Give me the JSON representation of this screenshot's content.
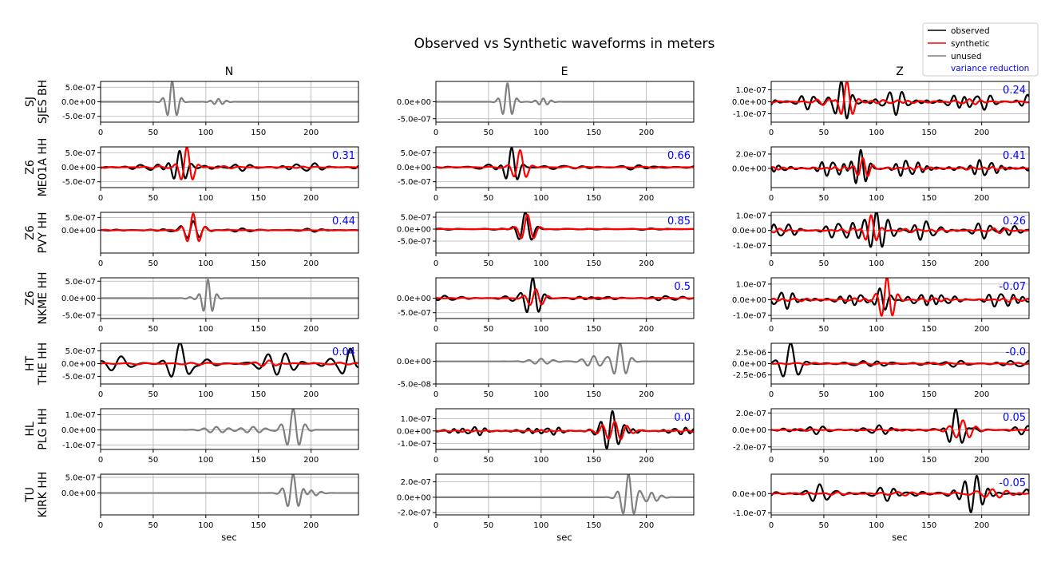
{
  "title": "Observed vs Synthetic waveforms in meters",
  "legend": {
    "placement": "top-right",
    "entries": [
      {
        "label": "observed",
        "color": "#000000"
      },
      {
        "label": "synthetic",
        "color": "#ff0000"
      },
      {
        "label": "unused",
        "color": "#808080"
      },
      {
        "label": "variance reduction",
        "color": "#0000ff"
      }
    ]
  },
  "columns": [
    "N",
    "E",
    "Z"
  ],
  "xlabel": "sec",
  "xticks": [
    0,
    50,
    100,
    150,
    200
  ],
  "xlim": [
    0,
    245
  ],
  "colors": {
    "observed": "#000000",
    "synthetic": "#ff0000",
    "unused": "#808080",
    "vr": "#0000ff",
    "grid": "#b0b0b0"
  },
  "chart_data": [
    {
      "type": "line",
      "row": 0,
      "col": 0,
      "network": "SJ",
      "station": "SJES BH",
      "component": "N",
      "status": "unused",
      "vr": "",
      "yticks": [
        "5.0e-07",
        "0.0e+00",
        "-5.0e-07"
      ],
      "ytick_values": [
        5e-07,
        0,
        -5e-07
      ],
      "ylim": [
        -7e-07,
        7e-07
      ],
      "events": [
        {
          "c": 68,
          "a": 7e-07,
          "p": 9.5,
          "w": 7
        },
        {
          "c": 112,
          "a": 1e-07,
          "p": 8,
          "w": 8
        }
      ]
    },
    {
      "type": "line",
      "row": 0,
      "col": 1,
      "network": "SJ",
      "station": "SJES BH",
      "component": "E",
      "status": "unused",
      "vr": "",
      "yticks": [
        "0.0e+00",
        "-5.0e-07"
      ],
      "ytick_values": [
        0,
        -5e-07
      ],
      "ylim": [
        -6e-07,
        6e-07
      ],
      "events": [
        {
          "c": 68,
          "a": 5.5e-07,
          "p": 9.5,
          "w": 7
        },
        {
          "c": 102,
          "a": 1e-07,
          "p": 8,
          "w": 8
        }
      ]
    },
    {
      "type": "line",
      "row": 0,
      "col": 2,
      "network": "SJ",
      "station": "SJES BH",
      "component": "Z",
      "status": "used",
      "vr": "0.24",
      "yticks": [
        "1.0e-07",
        "0.0e+00",
        "-1.0e-07"
      ],
      "ytick_values": [
        1e-07,
        0,
        -1e-07
      ],
      "ylim": [
        -1.7e-07,
        1.7e-07
      ],
      "osc": {
        "a": 9e-08,
        "p": 12
      },
      "obs_events": [
        {
          "c": 67,
          "a": 1.8e-07,
          "p": 11,
          "w": 9
        }
      ],
      "syn_events": [
        {
          "c": 72,
          "a": 1.7e-07,
          "p": 12,
          "w": 8
        },
        {
          "c": 120,
          "a": 2e-08,
          "p": 12,
          "w": 30
        }
      ]
    },
    {
      "type": "line",
      "row": 1,
      "col": 0,
      "network": "Z6",
      "station": "ME01A HH",
      "component": "N",
      "status": "used",
      "vr": "0.31",
      "yticks": [
        "5.0e-07",
        "0.0e+00",
        "-5.0e-07"
      ],
      "ytick_values": [
        5e-07,
        0,
        -5e-07
      ],
      "ylim": [
        -7e-07,
        7e-07
      ],
      "osc": {
        "a": 1.5e-07,
        "p": 15
      },
      "obs_events": [
        {
          "c": 75,
          "a": 6e-07,
          "p": 12,
          "w": 9
        }
      ],
      "syn_events": [
        {
          "c": 82,
          "a": 7e-07,
          "p": 12,
          "w": 8
        }
      ]
    },
    {
      "type": "line",
      "row": 1,
      "col": 1,
      "network": "Z6",
      "station": "ME01A HH",
      "component": "E",
      "status": "used",
      "vr": "0.66",
      "yticks": [
        "5.0e-07",
        "0.0e+00",
        "-5.0e-07"
      ],
      "ytick_values": [
        5e-07,
        0,
        -5e-07
      ],
      "ylim": [
        -7e-07,
        7e-07
      ],
      "osc": {
        "a": 1e-07,
        "p": 18
      },
      "obs_events": [
        {
          "c": 72,
          "a": 7e-07,
          "p": 12,
          "w": 8
        }
      ],
      "syn_events": [
        {
          "c": 80,
          "a": 6e-07,
          "p": 13,
          "w": 8
        }
      ]
    },
    {
      "type": "line",
      "row": 1,
      "col": 2,
      "network": "Z6",
      "station": "ME01A HH",
      "component": "Z",
      "status": "used",
      "vr": "0.41",
      "yticks": [
        "2.0e-07",
        "0.0e+00"
      ],
      "ytick_values": [
        2e-07,
        0
      ],
      "ylim": [
        -2.7e-07,
        3e-07
      ],
      "osc": {
        "a": 1.1e-07,
        "p": 10
      },
      "obs_events": [
        {
          "c": 85,
          "a": 2.6e-07,
          "p": 10,
          "w": 9
        }
      ],
      "syn_events": [
        {
          "c": 87,
          "a": 1.5e-07,
          "p": 10,
          "w": 9
        }
      ]
    },
    {
      "type": "line",
      "row": 2,
      "col": 0,
      "network": "Z6",
      "station": "PVY HH",
      "component": "N",
      "status": "used",
      "vr": "0.44",
      "yticks": [
        "5.0e-07",
        "0.0e+00"
      ],
      "ytick_values": [
        5e-07,
        0
      ],
      "ylim": [
        -9e-07,
        7e-07
      ],
      "osc": {
        "a": 6e-08,
        "p": 15
      },
      "obs_events": [
        {
          "c": 88,
          "a": 3.5e-07,
          "p": 12,
          "w": 12
        }
      ],
      "syn_events": [
        {
          "c": 88,
          "a": 6.5e-07,
          "p": 12,
          "w": 9
        }
      ]
    },
    {
      "type": "line",
      "row": 2,
      "col": 1,
      "network": "Z6",
      "station": "PVY HH",
      "component": "E",
      "status": "used",
      "vr": "0.85",
      "yticks": [
        "5.0e-07",
        "0.0e+00",
        "-5.0e-07"
      ],
      "ytick_values": [
        5e-07,
        0,
        -5e-07
      ],
      "ylim": [
        -1e-06,
        7e-07
      ],
      "osc": {
        "a": 4e-08,
        "p": 20
      },
      "obs_events": [
        {
          "c": 85,
          "a": 7e-07,
          "p": 13,
          "w": 9
        }
      ],
      "syn_events": [
        {
          "c": 87,
          "a": 6e-07,
          "p": 13,
          "w": 9
        }
      ]
    },
    {
      "type": "line",
      "row": 2,
      "col": 2,
      "network": "Z6",
      "station": "PVY HH",
      "component": "Z",
      "status": "used",
      "vr": "0.26",
      "yticks": [
        "1.0e-07",
        "0.0e+00",
        "-1.0e-07"
      ],
      "ytick_values": [
        1e-07,
        0,
        -1e-07
      ],
      "ylim": [
        -1.5e-07,
        1.2e-07
      ],
      "osc": {
        "a": 6e-08,
        "p": 12
      },
      "obs_events": [
        {
          "c": 100,
          "a": 1.2e-07,
          "p": 11,
          "w": 14
        }
      ],
      "syn_events": [
        {
          "c": 95,
          "a": 1e-07,
          "p": 11,
          "w": 8
        }
      ]
    },
    {
      "type": "line",
      "row": 3,
      "col": 0,
      "network": "Z6",
      "station": "NKME HH",
      "component": "N",
      "status": "unused",
      "vr": "",
      "yticks": [
        "5.0e-07",
        "0.0e+00",
        "-5.0e-07"
      ],
      "ytick_values": [
        5e-07,
        0,
        -5e-07
      ],
      "ylim": [
        -6e-07,
        6e-07
      ],
      "events": [
        {
          "c": 102,
          "a": 5.5e-07,
          "p": 9,
          "w": 7
        },
        {
          "c": 85,
          "a": 3e-08,
          "p": 10,
          "w": 6
        }
      ]
    },
    {
      "type": "line",
      "row": 3,
      "col": 1,
      "network": "Z6",
      "station": "NKME HH",
      "component": "E",
      "status": "used",
      "vr": "0.5",
      "yticks": [
        "0.0e+00",
        "-5.0e-07"
      ],
      "ytick_values": [
        0,
        -5e-07
      ],
      "ylim": [
        -7e-07,
        7e-07
      ],
      "osc": {
        "a": 8e-08,
        "p": 14
      },
      "obs_events": [
        {
          "c": 92,
          "a": 7e-07,
          "p": 12,
          "w": 9
        }
      ],
      "syn_events": [
        {
          "c": 95,
          "a": 3e-07,
          "p": 12,
          "w": 10
        }
      ]
    },
    {
      "type": "line",
      "row": 3,
      "col": 2,
      "network": "Z6",
      "station": "NKME HH",
      "component": "Z",
      "status": "used",
      "vr": "-0.07",
      "yticks": [
        "1.0e-07",
        "0.0e+00",
        "-1.0e-07"
      ],
      "ytick_values": [
        1e-07,
        0,
        -1e-07
      ],
      "ylim": [
        -1.2e-07,
        1.4e-07
      ],
      "osc": {
        "a": 5e-08,
        "p": 11
      },
      "obs_events": [
        {
          "c": 103,
          "a": 9e-08,
          "p": 11,
          "w": 10
        }
      ],
      "syn_events": [
        {
          "c": 110,
          "a": 1.4e-07,
          "p": 11,
          "w": 9
        }
      ]
    },
    {
      "type": "line",
      "row": 4,
      "col": 0,
      "network": "HT",
      "station": "THE HH",
      "component": "N",
      "status": "used",
      "vr": "0.04",
      "yticks": [
        "5.0e-07",
        "0.0e+00",
        "-5.0e-07"
      ],
      "ytick_values": [
        5e-07,
        0,
        -5e-07
      ],
      "ylim": [
        -8e-07,
        8e-07
      ],
      "osc": {
        "a": 2.5e-07,
        "p": 20
      },
      "obs_events": [
        {
          "c": 75,
          "a": 7e-07,
          "p": 18,
          "w": 12
        },
        {
          "c": 175,
          "a": 4e-07,
          "p": 18,
          "w": 14
        },
        {
          "c": 237,
          "a": 5e-07,
          "p": 16,
          "w": 8
        }
      ],
      "syn_events": [
        {
          "c": 160,
          "a": 1.2e-07,
          "p": 14,
          "w": 10
        }
      ]
    },
    {
      "type": "line",
      "row": 4,
      "col": 1,
      "network": "HT",
      "station": "THE HH",
      "component": "E",
      "status": "unused",
      "vr": "",
      "yticks": [
        "0.0e+00",
        "-5.0e-08"
      ],
      "ytick_values": [
        0,
        -5e-08
      ],
      "ylim": [
        -5e-08,
        4e-08
      ],
      "events": [
        {
          "c": 175,
          "a": 4e-08,
          "p": 12,
          "w": 9
        },
        {
          "c": 150,
          "a": 1.2e-08,
          "p": 12,
          "w": 12
        },
        {
          "c": 100,
          "a": 6e-09,
          "p": 12,
          "w": 14
        }
      ]
    },
    {
      "type": "line",
      "row": 4,
      "col": 2,
      "network": "HT",
      "station": "THE HH",
      "component": "Z",
      "status": "used",
      "vr": "-0.0",
      "yticks": [
        "2.5e-06",
        "0.0e+00",
        "-2.5e-06"
      ],
      "ytick_values": [
        2.5e-06,
        0,
        -2.5e-06
      ],
      "ylim": [
        -4.5e-06,
        4.5e-06
      ],
      "osc": {
        "a": 9e-07,
        "p": 16
      },
      "obs_events": [
        {
          "c": 18,
          "a": 4.5e-06,
          "p": 16,
          "w": 10
        }
      ],
      "syn_events": []
    },
    {
      "type": "line",
      "row": 5,
      "col": 0,
      "network": "HL",
      "station": "PLG HH",
      "component": "N",
      "status": "unused",
      "vr": "",
      "yticks": [
        "1.0e-07",
        "0.0e+00",
        "-1.0e-07"
      ],
      "ytick_values": [
        1e-07,
        0,
        -1e-07
      ],
      "ylim": [
        -1.3e-07,
        1.4e-07
      ],
      "events": [
        {
          "c": 183,
          "a": 1.4e-07,
          "p": 12,
          "w": 10
        },
        {
          "c": 110,
          "a": 2e-08,
          "p": 12,
          "w": 14
        },
        {
          "c": 145,
          "a": 2e-08,
          "p": 12,
          "w": 14
        }
      ]
    },
    {
      "type": "line",
      "row": 5,
      "col": 1,
      "network": "HL",
      "station": "PLG HH",
      "component": "E",
      "status": "used",
      "vr": "0.0",
      "yticks": [
        "1.0e-07",
        "0.0e+00",
        "-1.0e-07"
      ],
      "ytick_values": [
        1e-07,
        0,
        -1e-07
      ],
      "ylim": [
        -1.5e-07,
        1.8e-07
      ],
      "osc": {
        "a": 3.5e-08,
        "p": 10
      },
      "obs_events": [
        {
          "c": 168,
          "a": 1.5e-07,
          "p": 12,
          "w": 12
        }
      ],
      "syn_events": [
        {
          "c": 170,
          "a": 7e-08,
          "p": 12,
          "w": 16
        }
      ]
    },
    {
      "type": "line",
      "row": 5,
      "col": 2,
      "network": "HL",
      "station": "PLG HH",
      "component": "Z",
      "status": "used",
      "vr": "0.05",
      "yticks": [
        "2.0e-07",
        "0.0e+00",
        "-2.0e-07"
      ],
      "ytick_values": [
        2e-07,
        0,
        -2e-07
      ],
      "ylim": [
        -2.3e-07,
        2.5e-07
      ],
      "osc": {
        "a": 5e-08,
        "p": 13
      },
      "obs_events": [
        {
          "c": 175,
          "a": 2.5e-07,
          "p": 13,
          "w": 9
        }
      ],
      "syn_events": [
        {
          "c": 182,
          "a": 1.1e-07,
          "p": 13,
          "w": 12
        }
      ]
    },
    {
      "type": "line",
      "row": 6,
      "col": 0,
      "network": "TU",
      "station": "KIRK HH",
      "component": "N",
      "status": "unused",
      "vr": "",
      "yticks": [
        "5.0e-07",
        "0.0e+00"
      ],
      "ytick_values": [
        5e-07,
        0
      ],
      "ylim": [
        -7e-07,
        6e-07
      ],
      "events": [
        {
          "c": 183,
          "a": 6e-07,
          "p": 11,
          "w": 9
        },
        {
          "c": 200,
          "a": 1e-07,
          "p": 10,
          "w": 10
        }
      ]
    },
    {
      "type": "line",
      "row": 6,
      "col": 1,
      "network": "TU",
      "station": "KIRK HH",
      "component": "E",
      "status": "unused",
      "vr": "",
      "yticks": [
        "2.0e-07",
        "0.0e+00",
        "-2.0e-07"
      ],
      "ytick_values": [
        2e-07,
        0,
        -2e-07
      ],
      "ylim": [
        -2.3e-07,
        3e-07
      ],
      "events": [
        {
          "c": 183,
          "a": 3e-07,
          "p": 11,
          "w": 9
        },
        {
          "c": 205,
          "a": 6e-08,
          "p": 10,
          "w": 10
        }
      ]
    },
    {
      "type": "line",
      "row": 6,
      "col": 2,
      "network": "TU",
      "station": "KIRK HH",
      "component": "Z",
      "status": "used",
      "vr": "-0.05",
      "yticks": [
        "0.0e+00",
        "-1.0e-07"
      ],
      "ytick_values": [
        0,
        -1e-07
      ],
      "ylim": [
        -1.1e-07,
        1e-07
      ],
      "osc": {
        "a": 4e-08,
        "p": 14
      },
      "obs_events": [
        {
          "c": 195,
          "a": 1e-07,
          "p": 12,
          "w": 12
        }
      ],
      "syn_events": [
        {
          "c": 210,
          "a": 2.5e-08,
          "p": 14,
          "w": 20
        }
      ]
    }
  ]
}
